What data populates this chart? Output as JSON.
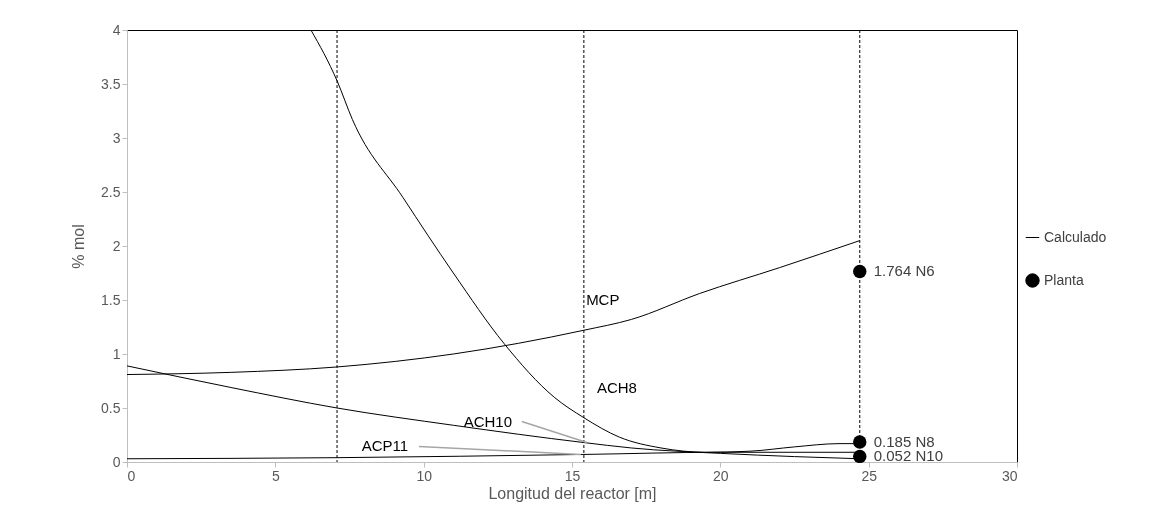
{
  "chart_data": {
    "type": "line",
    "xlabel": "Longitud del reactor [m]",
    "ylabel": "% mol",
    "xlim": [
      0,
      30
    ],
    "xticks": [
      0,
      5,
      10,
      15,
      20,
      25,
      30
    ],
    "ylim": [
      0,
      4
    ],
    "yticks": [
      0,
      0.5,
      1,
      1.5,
      2,
      2.5,
      3,
      3.5,
      4
    ],
    "grid": false,
    "legend": "right",
    "marker": "none",
    "line_style": "solid",
    "series": [
      {
        "name": "Calculado",
        "color": "#000000",
        "x": [
          0,
          3.5,
          7.08,
          11,
          15.4,
          17,
          19.3,
          22,
          24.7
        ],
        "values": [
          0.81,
          0.83,
          0.88,
          1.0,
          1.22,
          1.32,
          1.56,
          1.8,
          2.05
        ]
      },
      {
        "color": "#000000",
        "x": [
          6.2,
          7.08,
          7.6,
          9.3,
          11,
          12.7,
          14.4,
          15.4,
          16.6,
          18,
          19.5,
          21,
          22.5,
          24,
          24.7
        ],
        "values": [
          4.0,
          3.53,
          3.17,
          2.45,
          1.75,
          1.1,
          0.6,
          0.41,
          0.23,
          0.13,
          0.09,
          0.1,
          0.14,
          0.17,
          0.17
        ]
      },
      {
        "color": "#000000",
        "x": [
          0,
          3.5,
          7.08,
          11,
          15.4,
          17,
          20,
          22.5,
          24.7
        ],
        "values": [
          0.89,
          0.69,
          0.5,
          0.34,
          0.18,
          0.13,
          0.08,
          0.05,
          0.03
        ]
      },
      {
        "color": "#000000",
        "x": [
          0,
          7.08,
          15.4,
          20,
          24.7
        ],
        "values": [
          0.03,
          0.04,
          0.07,
          0.09,
          0.09
        ]
      },
      {
        "name": "Planta",
        "type": "scatter",
        "marker": "circle",
        "color": "#000000",
        "x": [
          24.7,
          24.7,
          24.7
        ],
        "values": [
          1.764,
          0.185,
          0.052
        ],
        "value_labels": [
          "1.764 N6",
          "0.185 N8",
          "0.052 N10"
        ]
      }
    ],
    "ref_lines": [
      {
        "axis": "x",
        "value": 7.08,
        "color": "#000000",
        "line_style": "dashed"
      },
      {
        "axis": "x",
        "value": 15.4,
        "color": "#000000",
        "line_style": "dashed"
      },
      {
        "axis": "x",
        "value": 24.7,
        "color": "#000000",
        "line_style": "dashed"
      }
    ],
    "annotations": [
      {
        "text": "MCP",
        "x": 15.6,
        "y": 1.23
      },
      {
        "text": "ACH8",
        "x": 15.2,
        "y": 0.45
      },
      {
        "text": "ACH10",
        "x": 15.5,
        "y": 0.18
      },
      {
        "text": "ACP11",
        "x": 15.3,
        "y": 0.07
      }
    ]
  }
}
